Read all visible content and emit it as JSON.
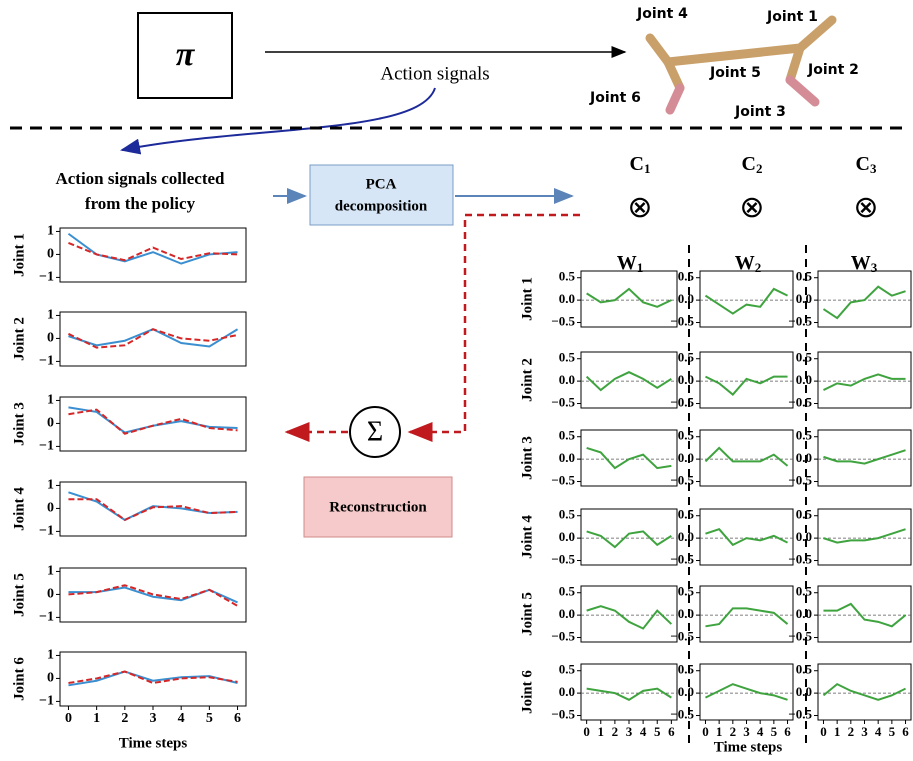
{
  "policy_symbol": "π",
  "arrow_label": "Action signals",
  "robot_joints": [
    "Joint 4",
    "Joint 1",
    "Joint 5",
    "Joint 2",
    "Joint 6",
    "Joint 3"
  ],
  "left_title": [
    "Action signals collected",
    "from the policy"
  ],
  "pca_label": [
    "PCA",
    "decomposition"
  ],
  "sum_symbol": "Σ",
  "reconstruction_label": "Reconstruction",
  "components": [
    {
      "letter": "C",
      "index": "1"
    },
    {
      "letter": "C",
      "index": "2"
    },
    {
      "letter": "C",
      "index": "3"
    }
  ],
  "product_symbol": "⊗",
  "weights": [
    {
      "letter": "W",
      "index": "1"
    },
    {
      "letter": "W",
      "index": "2"
    },
    {
      "letter": "W",
      "index": "3"
    }
  ],
  "action_plots": {
    "xlabel": "Time steps",
    "x": [
      0,
      1,
      2,
      3,
      4,
      5,
      6
    ],
    "xlim": [
      -0.3,
      6.3
    ],
    "xticks": [
      0,
      1,
      2,
      3,
      4,
      5,
      6
    ],
    "ylim": [
      -1.2,
      1.15
    ],
    "yticks": [
      {
        "value": -1,
        "label": "−1"
      },
      0,
      1
    ],
    "rows": [
      {
        "label": "Joint 1",
        "series": [
          {
            "color": "#3a8fd0",
            "values": [
              0.9,
              0,
              -0.3,
              0.1,
              -0.4,
              0,
              0.1
            ]
          },
          {
            "color": "#d62728",
            "dash": true,
            "values": [
              0.5,
              0,
              -0.25,
              0.3,
              -0.2,
              0.05,
              0
            ]
          }
        ]
      },
      {
        "label": "Joint 2",
        "series": [
          {
            "color": "#3a8fd0",
            "values": [
              0.1,
              -0.3,
              -0.1,
              0.4,
              -0.2,
              -0.35,
              0.4
            ]
          },
          {
            "color": "#d62728",
            "dash": true,
            "values": [
              0.2,
              -0.4,
              -0.3,
              0.4,
              0,
              -0.1,
              0.15
            ]
          }
        ]
      },
      {
        "label": "Joint 3",
        "series": [
          {
            "color": "#3a8fd0",
            "values": [
              0.7,
              0.5,
              -0.4,
              -0.1,
              0.1,
              -0.15,
              -0.2
            ]
          },
          {
            "color": "#d62728",
            "dash": true,
            "values": [
              0.4,
              0.6,
              -0.45,
              -0.1,
              0.2,
              -0.2,
              -0.3
            ]
          }
        ]
      },
      {
        "label": "Joint 4",
        "series": [
          {
            "color": "#3a8fd0",
            "values": [
              0.7,
              0.3,
              -0.5,
              0.1,
              0,
              -0.2,
              -0.15
            ]
          },
          {
            "color": "#d62728",
            "dash": true,
            "values": [
              0.4,
              0.4,
              -0.5,
              0.05,
              0.1,
              -0.2,
              -0.15
            ]
          }
        ]
      },
      {
        "label": "Joint 5",
        "series": [
          {
            "color": "#3a8fd0",
            "values": [
              0.1,
              0.1,
              0.3,
              -0.1,
              -0.25,
              0.2,
              -0.35
            ]
          },
          {
            "color": "#d62728",
            "dash": true,
            "values": [
              0,
              0.1,
              0.4,
              0,
              -0.2,
              0.2,
              -0.5
            ]
          }
        ]
      },
      {
        "label": "Joint 6",
        "series": [
          {
            "color": "#3a8fd0",
            "values": [
              -0.3,
              -0.1,
              0.3,
              -0.1,
              0.05,
              0.1,
              -0.2
            ]
          },
          {
            "color": "#d62728",
            "dash": true,
            "values": [
              -0.2,
              0,
              0.3,
              -0.2,
              0,
              0.05,
              -0.15
            ]
          }
        ]
      }
    ]
  },
  "weight_plots": {
    "xlabel": "Time steps",
    "x": [
      0,
      1,
      2,
      3,
      4,
      5,
      6
    ],
    "xlim": [
      -0.4,
      6.4
    ],
    "xticks": [
      0,
      1,
      2,
      3,
      4,
      5,
      6
    ],
    "ylim": [
      -0.6,
      0.65
    ],
    "yticks": [
      {
        "value": -0.5,
        "label": "−0.5"
      },
      {
        "value": 0,
        "label": "0.0"
      },
      0.5
    ],
    "color": "#3fa33f",
    "zero_line": true,
    "row_labels": [
      "Joint 1",
      "Joint 2",
      "Joint 3",
      "Joint 4",
      "Joint 5",
      "Joint 6"
    ],
    "values": [
      [
        [
          0.15,
          -0.05,
          0,
          0.25,
          -0.05,
          -0.15,
          0
        ],
        [
          0.1,
          -0.1,
          -0.3,
          -0.1,
          -0.15,
          0.25,
          0.1
        ],
        [
          -0.2,
          -0.4,
          -0.05,
          0,
          0.3,
          0.1,
          0.2
        ]
      ],
      [
        [
          0.1,
          -0.2,
          0.05,
          0.2,
          0.05,
          -0.15,
          0.05
        ],
        [
          0.1,
          -0.05,
          -0.3,
          0.05,
          -0.05,
          0.1,
          0.1
        ],
        [
          -0.2,
          -0.05,
          -0.1,
          0.05,
          0.15,
          0.05,
          0.05
        ]
      ],
      [
        [
          0.25,
          0.15,
          -0.2,
          0,
          0.1,
          -0.2,
          -0.15
        ],
        [
          -0.05,
          0.25,
          -0.05,
          -0.05,
          -0.05,
          0.1,
          -0.15
        ],
        [
          0.05,
          -0.05,
          -0.05,
          -0.1,
          0,
          0.1,
          0.2
        ]
      ],
      [
        [
          0.15,
          0.05,
          -0.2,
          0.1,
          0.15,
          -0.15,
          0.05
        ],
        [
          0.1,
          0.2,
          -0.15,
          0,
          -0.05,
          0.05,
          -0.1
        ],
        [
          0,
          -0.1,
          -0.05,
          -0.05,
          0,
          0.1,
          0.2
        ]
      ],
      [
        [
          0.1,
          0.2,
          0.1,
          -0.15,
          -0.3,
          0.1,
          -0.2
        ],
        [
          -0.25,
          -0.2,
          0.15,
          0.15,
          0.1,
          0.05,
          -0.2
        ],
        [
          0.1,
          0.1,
          0.25,
          -0.1,
          -0.15,
          -0.25,
          0
        ]
      ],
      [
        [
          0.1,
          0.05,
          0,
          -0.15,
          0.05,
          0.1,
          -0.1
        ],
        [
          -0.1,
          0.05,
          0.2,
          0.1,
          0,
          -0.05,
          -0.15
        ],
        [
          -0.05,
          0.2,
          0.05,
          -0.05,
          -0.15,
          -0.05,
          0.1
        ]
      ]
    ]
  }
}
